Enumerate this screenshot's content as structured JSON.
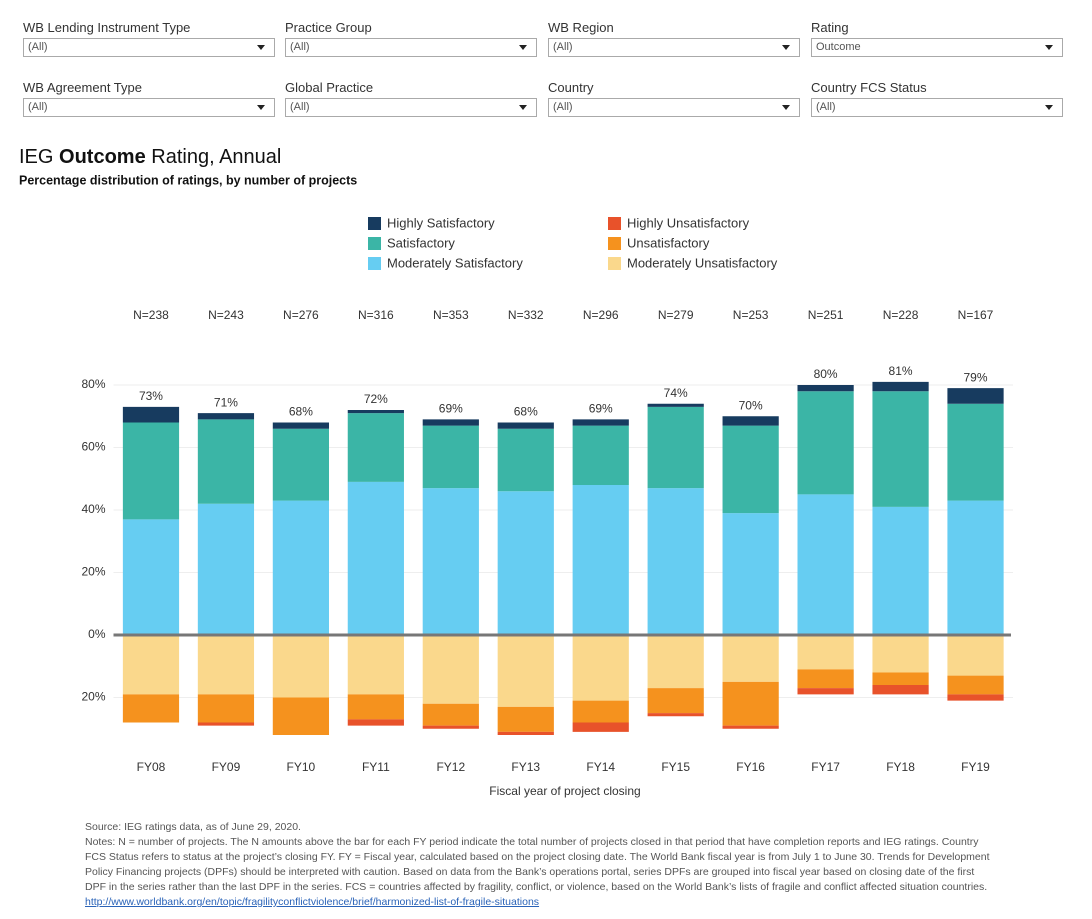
{
  "filters": [
    {
      "label": "WB Lending Instrument Type",
      "value": "(All)"
    },
    {
      "label": "Practice Group",
      "value": "(All)"
    },
    {
      "label": "WB Region",
      "value": "(All)"
    },
    {
      "label": "Rating",
      "value": "Outcome"
    },
    {
      "label": "WB Agreement Type",
      "value": "(All)"
    },
    {
      "label": "Global Practice",
      "value": "(All)"
    },
    {
      "label": "Country",
      "value": "(All)"
    },
    {
      "label": "Country FCS Status",
      "value": "(All)"
    }
  ],
  "chart_data": {
    "type": "bar",
    "title": [
      "IEG",
      "Outcome",
      "Rating, Annual"
    ],
    "subtitle": "Percentage distribution of ratings, by number of projects",
    "x_label": "Fiscal year of project closing",
    "categories": [
      "FY08",
      "FY09",
      "FY10",
      "FY11",
      "FY12",
      "FY13",
      "FY14",
      "FY15",
      "FY16",
      "FY17",
      "FY18",
      "FY19"
    ],
    "n_labels": [
      "N=238",
      "N=243",
      "N=276",
      "N=316",
      "N=353",
      "N=332",
      "N=296",
      "N=279",
      "N=253",
      "N=251",
      "N=228",
      "N=167"
    ],
    "totals": [
      73,
      71,
      68,
      72,
      69,
      68,
      69,
      74,
      70,
      80,
      81,
      79
    ],
    "total_labels": [
      "73%",
      "71%",
      "68%",
      "72%",
      "69%",
      "68%",
      "69%",
      "74%",
      "70%",
      "80%",
      "81%",
      "79%"
    ],
    "series": [
      {
        "name": "Highly Satisfactory",
        "color": "#173b5f",
        "values": [
          5,
          2,
          2,
          1,
          2,
          2,
          2,
          1,
          3,
          2,
          3,
          5
        ]
      },
      {
        "name": "Satisfactory",
        "color": "#3bb5a6",
        "values": [
          31,
          27,
          23,
          22,
          20,
          20,
          19,
          26,
          28,
          33,
          37,
          31
        ]
      },
      {
        "name": "Moderately Satisfactory",
        "color": "#66cdf2",
        "values": [
          37,
          42,
          43,
          49,
          47,
          46,
          48,
          47,
          39,
          45,
          41,
          43
        ]
      },
      {
        "name": "Highly Unsatisfactory",
        "color": "#e8522a",
        "values": [
          0,
          -1,
          0,
          -2,
          -1,
          -1,
          -3,
          -1,
          -1,
          -2,
          -3,
          -2
        ]
      },
      {
        "name": "Unsatisfactory",
        "color": "#f5921e",
        "values": [
          -9,
          -9,
          -12,
          -8,
          -7,
          -8,
          -7,
          -8,
          -14,
          -6,
          -4,
          -6
        ]
      },
      {
        "name": "Moderately Unsatisfactory",
        "color": "#fad88c",
        "values": [
          -19,
          -19,
          -20,
          -19,
          -22,
          -23,
          -21,
          -17,
          -15,
          -11,
          -12,
          -13
        ]
      }
    ],
    "ylim": [
      -40,
      92
    ],
    "yticks": [
      {
        "value": -20,
        "label": "20%"
      },
      {
        "value": 0,
        "label": "0%"
      },
      {
        "value": 20,
        "label": "20%"
      },
      {
        "value": 40,
        "label": "40%"
      },
      {
        "value": 60,
        "label": "60%"
      },
      {
        "value": 80,
        "label": "80%"
      }
    ],
    "grid": true
  },
  "footer": {
    "source": "Source: IEG ratings data, as of June 29, 2020.",
    "notes": "Notes: N = number of projects. The N amounts above the bar for each FY period indicate the total number of projects closed in that period that have completion reports and IEG ratings. Country FCS Status refers to status at the project’s closing FY. FY = Fiscal year, calculated based on the project closing date. The World Bank fiscal year is from July 1 to June 30. Trends for Development Policy Financing projects (DPFs) should be interpreted with caution. Based on data from the Bank’s operations portal, series DPFs are grouped into fiscal year based on closing date of the first DPF in the series rather than the last DPF in the series. FCS = countries affected by fragility, conflict, or violence, based on the World Bank’s lists of fragile and conflict affected situation countries.",
    "link": "http://www.worldbank.org/en/topic/fragilityconflictviolence/brief/harmonized-list-of-fragile-situations"
  }
}
